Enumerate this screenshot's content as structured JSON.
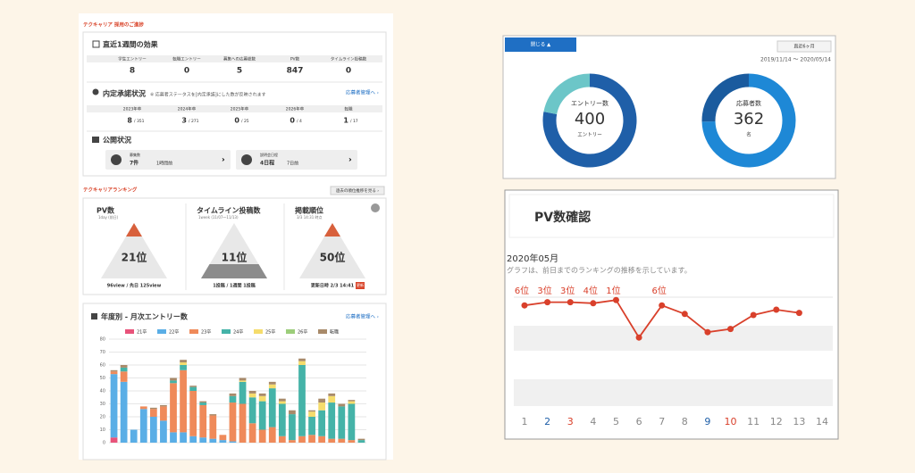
{
  "dashboard": {
    "header": "テクキャリア 採用のご進捗",
    "weekly": {
      "title": "直近1週間の効果",
      "columns": [
        "学生エントリー",
        "転職エントリー",
        "募集への応募総数",
        "PV数",
        "タイムライン投稿数"
      ],
      "values": [
        8,
        0,
        5,
        847,
        0
      ]
    },
    "offers": {
      "title": "内定承諾状況",
      "note": "※ 応募者ステータスを[内定承諾]にした数が反映されます",
      "link": "応募者管理へ ›",
      "columns": [
        "2023年卒",
        "2024年卒",
        "2025年卒",
        "2026年卒",
        "転職"
      ],
      "values": [
        8,
        3,
        0,
        0,
        1
      ],
      "totals": [
        "/ 351",
        "/ 271",
        "/ 25",
        "/ 4",
        "/ 17"
      ]
    },
    "publish": {
      "title": "公開状況",
      "cards": [
        {
          "label": "募集数",
          "count": "7件",
          "updated": "1時間前"
        },
        {
          "label": "説明会日程",
          "count": "4日程",
          "updated": "7日前"
        }
      ]
    },
    "ranking": {
      "title": "テクキャリアランキング",
      "button": "過去の順位推移を見る ›",
      "cards": [
        {
          "title": "PV数",
          "sub": "1day (前日)",
          "rank": "21位",
          "foot": "96view / 先日 125view"
        },
        {
          "title": "タイムライン投稿数",
          "sub": "1week (11/07〜11/13)",
          "rank": "11位",
          "foot": "1投稿 / 1週間 1投稿"
        },
        {
          "title": "掲載順位",
          "sub": "3/3 14:31 時点",
          "rank": "50位",
          "foot": "更新日時 2/3 14:41",
          "badge": "更新"
        }
      ]
    },
    "entries": {
      "title": "年度別 - 月次エントリー数",
      "link": "応募者管理へ ›"
    },
    "summary": {
      "tab": "閉じる ▲",
      "period": "直近6ヶ月",
      "dates": "2019/11/14 〜 2020/05/14"
    },
    "pv": {
      "title": "PV数確認",
      "month": "2020年05月",
      "description": "グラフは、前日までのランキングの推移を示しています。"
    }
  },
  "chart_data": [
    {
      "type": "stacked-bar",
      "categories": [
        null,
        null,
        null,
        null,
        null,
        null,
        null,
        null,
        null,
        null,
        null,
        null,
        null,
        null,
        null,
        null,
        null,
        null,
        null,
        null,
        null,
        null,
        null,
        null,
        null,
        null
      ],
      "ylim": [
        0,
        80
      ],
      "yticks": [
        0,
        10,
        20,
        30,
        40,
        50,
        60,
        70,
        80
      ],
      "grid": true,
      "series": [
        {
          "name": "21卒",
          "color": "#e8537a",
          "values": [
            4,
            0,
            0,
            0,
            0,
            0,
            0,
            0,
            0,
            0,
            0,
            0,
            0,
            0,
            0,
            0,
            0,
            0,
            0,
            0,
            0,
            0,
            0,
            0,
            0,
            0
          ]
        },
        {
          "name": "22卒",
          "color": "#5aaee6",
          "values": [
            49,
            47,
            10,
            26,
            20,
            17,
            8,
            8,
            5,
            4,
            3,
            2,
            1,
            0,
            0,
            0,
            0,
            0,
            0,
            0,
            0,
            0,
            0,
            0,
            0,
            0
          ]
        },
        {
          "name": "23卒",
          "color": "#ef8a5a",
          "values": [
            2,
            8,
            0,
            2,
            6,
            11,
            38,
            48,
            35,
            25,
            18,
            4,
            30,
            30,
            15,
            10,
            12,
            5,
            2,
            5,
            6,
            5,
            3,
            3,
            2,
            0
          ]
        },
        {
          "name": "24卒",
          "color": "#45b3a8",
          "values": [
            0,
            3,
            0,
            0,
            0,
            0,
            2,
            4,
            3,
            2,
            0,
            0,
            5,
            17,
            20,
            22,
            30,
            25,
            20,
            55,
            14,
            20,
            28,
            25,
            28,
            2
          ]
        },
        {
          "name": "25卒",
          "color": "#f5dc6c",
          "values": [
            0,
            0,
            0,
            0,
            0,
            0,
            0,
            2,
            0,
            0,
            0,
            0,
            0,
            1,
            3,
            4,
            3,
            2,
            0,
            3,
            4,
            6,
            5,
            0,
            2,
            0
          ]
        },
        {
          "name": "26卒",
          "color": "#9ccd7a",
          "values": [
            0,
            0,
            0,
            0,
            0,
            0,
            0,
            0,
            0,
            0,
            0,
            0,
            0,
            0,
            0,
            0,
            0,
            0,
            0,
            0,
            0,
            0,
            0,
            0,
            0,
            0
          ]
        },
        {
          "name": "転職",
          "color": "#a88a6a",
          "values": [
            1,
            2,
            0,
            0,
            1,
            1,
            2,
            2,
            1,
            1,
            1,
            0,
            2,
            2,
            2,
            2,
            2,
            2,
            3,
            2,
            1,
            3,
            2,
            2,
            1,
            1
          ]
        }
      ]
    },
    {
      "type": "donut",
      "label": "エントリー数",
      "center_value": 400,
      "unit": "エントリー",
      "values": [
        312,
        88
      ],
      "colors": [
        "#1f5fa8",
        "#6cc6c8"
      ]
    },
    {
      "type": "donut",
      "label": "応募者数",
      "center_value": 362,
      "unit": "名",
      "values": [
        270,
        92
      ],
      "colors": [
        "#1e88d6",
        "#1a5b9e"
      ]
    },
    {
      "type": "line",
      "x": [
        1,
        2,
        3,
        4,
        5,
        6,
        7,
        8,
        9,
        10,
        11,
        12,
        13,
        14
      ],
      "values": [
        6,
        3,
        3,
        4,
        1,
        36,
        6,
        14,
        31,
        28,
        15,
        10,
        13,
        null
      ],
      "value_labels": [
        "6位",
        "3位",
        "3位",
        "4位",
        "1位",
        null,
        "6位",
        null,
        null,
        null,
        null,
        null,
        null,
        null
      ],
      "ylim": [
        0,
        120
      ],
      "inverted": true,
      "color": "#d9402b",
      "xtick_colors": [
        "#888888",
        "#1f5fa8",
        "#d9402b",
        "#888888",
        "#888888",
        "#888888",
        "#888888",
        "#888888",
        "#1f5fa8",
        "#d9402b",
        "#888888",
        "#888888",
        "#888888",
        "#888888"
      ]
    }
  ]
}
